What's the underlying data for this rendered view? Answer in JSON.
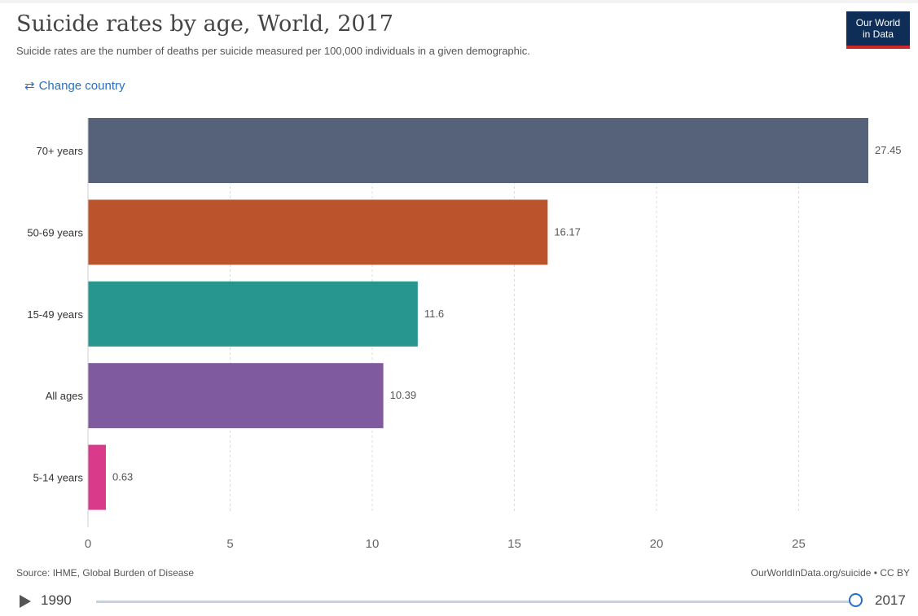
{
  "header": {
    "title": "Suicide rates by age, World, 2017",
    "subtitle": "Suicide rates are the number of deaths per suicide measured per 100,000 individuals in a given demographic.",
    "logo_line1": "Our World",
    "logo_line2": "in Data",
    "change_country_label": "Change country",
    "change_country_icon": "swap-arrows-icon"
  },
  "chart_data": {
    "type": "bar",
    "orientation": "horizontal",
    "categories": [
      "70+ years",
      "50-69 years",
      "15-49 years",
      "All ages",
      "5-14 years"
    ],
    "values": [
      27.45,
      16.17,
      11.6,
      10.39,
      0.63
    ],
    "value_labels": [
      "27.45",
      "16.17",
      "11.6",
      "10.39",
      "0.63"
    ],
    "colors": [
      "#56627a",
      "#bb532d",
      "#26968f",
      "#7f5a9f",
      "#d93b8a"
    ],
    "xlim": [
      0,
      27.45
    ],
    "xticks": [
      0,
      5,
      10,
      15,
      20,
      25
    ],
    "title": "Suicide rates by age, World, 2017",
    "xlabel": "",
    "ylabel": "",
    "grid": "vertical dashed"
  },
  "footer": {
    "source": "Source: IHME, Global Burden of Disease",
    "credit": "OurWorldInData.org/suicide • CC BY"
  },
  "timeline": {
    "start_year": "1990",
    "end_year": "2017",
    "selected_year": "2017",
    "play_icon": "play-icon"
  }
}
